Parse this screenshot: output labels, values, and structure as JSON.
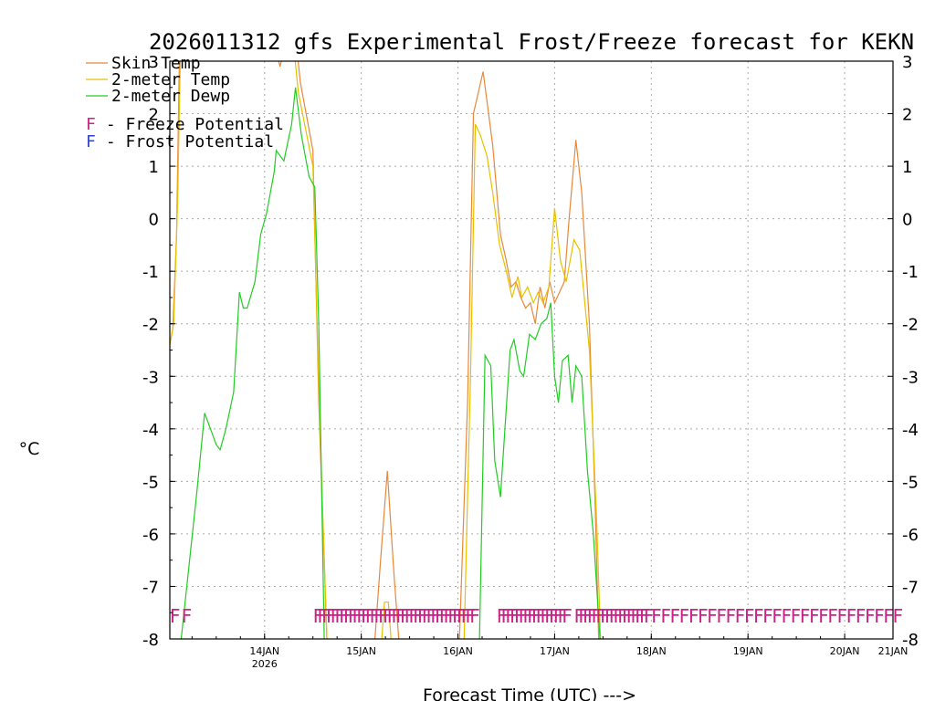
{
  "chart_data": {
    "type": "line",
    "title": "2026011312 gfs Experimental Frost/Freeze forecast for KEKN",
    "ylabel": "°C",
    "xlabel": "Forecast Time (UTC) --->",
    "ylim": [
      -8,
      3
    ],
    "xlim": [
      -0.48,
      7
    ],
    "y_ticks": [
      "-8",
      "-7",
      "-6",
      "-5",
      "-4",
      "-3",
      "-2",
      "-1",
      "0",
      "1",
      "2",
      "3"
    ],
    "x_ticks": [
      {
        "x": 0.5,
        "label": "14JAN",
        "sub": "2026"
      },
      {
        "x": 1.5,
        "label": "15JAN",
        "sub": ""
      },
      {
        "x": 2.5,
        "label": "16JAN",
        "sub": ""
      },
      {
        "x": 3.5,
        "label": "17JAN",
        "sub": ""
      },
      {
        "x": 4.5,
        "label": "18JAN",
        "sub": ""
      },
      {
        "x": 5.5,
        "label": "19JAN",
        "sub": ""
      },
      {
        "x": 6.5,
        "label": "20JAN",
        "sub": ""
      },
      {
        "x": 7.0,
        "label": "21JAN",
        "sub": ""
      }
    ],
    "grid": true,
    "series": [
      {
        "name": "Skin Temp",
        "color": "#e8883a",
        "points": [
          [
            -0.48,
            -2.4
          ],
          [
            -0.45,
            -2.1
          ],
          [
            -0.41,
            -0.3
          ],
          [
            -0.38,
            3.2
          ],
          [
            0.6,
            3.3
          ],
          [
            0.66,
            2.9
          ],
          [
            0.7,
            3.2
          ],
          [
            0.82,
            3.5
          ],
          [
            0.87,
            2.6
          ],
          [
            1.0,
            1.3
          ],
          [
            1.06,
            -3.5
          ],
          [
            1.15,
            -8.3
          ],
          [
            1.63,
            -8.3
          ],
          [
            1.7,
            -6.5
          ],
          [
            1.77,
            -4.8
          ],
          [
            1.84,
            -6.8
          ],
          [
            1.9,
            -8.3
          ],
          [
            2.51,
            -8.3
          ],
          [
            2.6,
            -3.5
          ],
          [
            2.66,
            2.0
          ],
          [
            2.76,
            2.8
          ],
          [
            2.86,
            1.4
          ],
          [
            2.94,
            -0.3
          ],
          [
            3.0,
            -0.8
          ],
          [
            3.05,
            -1.3
          ],
          [
            3.1,
            -1.2
          ],
          [
            3.15,
            -1.5
          ],
          [
            3.2,
            -1.7
          ],
          [
            3.25,
            -1.6
          ],
          [
            3.3,
            -2.0
          ],
          [
            3.35,
            -1.3
          ],
          [
            3.4,
            -1.7
          ],
          [
            3.45,
            -1.2
          ],
          [
            3.5,
            -1.6
          ],
          [
            3.55,
            -1.4
          ],
          [
            3.6,
            -1.2
          ],
          [
            3.65,
            0.0
          ],
          [
            3.72,
            1.5
          ],
          [
            3.78,
            0.5
          ],
          [
            3.86,
            -2.0
          ],
          [
            3.92,
            -5.5
          ],
          [
            3.96,
            -8.3
          ]
        ]
      },
      {
        "name": "2-meter Temp",
        "color": "#e8c000",
        "points": [
          [
            -0.48,
            -2.4
          ],
          [
            -0.44,
            -2.0
          ],
          [
            -0.4,
            0.3
          ],
          [
            -0.37,
            3.2
          ],
          [
            0.62,
            3.2
          ],
          [
            0.74,
            3.1
          ],
          [
            0.8,
            3.3
          ],
          [
            0.85,
            2.4
          ],
          [
            1.0,
            1.0
          ],
          [
            1.07,
            -3.8
          ],
          [
            1.15,
            -8.3
          ],
          [
            1.7,
            -8.3
          ],
          [
            1.74,
            -7.3
          ],
          [
            1.78,
            -7.3
          ],
          [
            1.82,
            -8.3
          ],
          [
            2.56,
            -8.3
          ],
          [
            2.63,
            -3.0
          ],
          [
            2.68,
            1.8
          ],
          [
            2.73,
            1.6
          ],
          [
            2.8,
            1.2
          ],
          [
            2.86,
            0.5
          ],
          [
            2.93,
            -0.5
          ],
          [
            3.0,
            -1.0
          ],
          [
            3.06,
            -1.5
          ],
          [
            3.12,
            -1.1
          ],
          [
            3.16,
            -1.5
          ],
          [
            3.22,
            -1.3
          ],
          [
            3.28,
            -1.6
          ],
          [
            3.33,
            -1.4
          ],
          [
            3.38,
            -1.6
          ],
          [
            3.44,
            -1.3
          ],
          [
            3.5,
            0.2
          ],
          [
            3.56,
            -0.8
          ],
          [
            3.62,
            -1.2
          ],
          [
            3.7,
            -0.4
          ],
          [
            3.76,
            -0.6
          ],
          [
            3.86,
            -2.5
          ],
          [
            3.94,
            -6.0
          ],
          [
            3.98,
            -8.3
          ]
        ]
      },
      {
        "name": "2-meter Dewp",
        "color": "#22cc22",
        "points": [
          [
            -0.38,
            -8.3
          ],
          [
            -0.2,
            -5.2
          ],
          [
            -0.12,
            -3.7
          ],
          [
            -0.06,
            -4.0
          ],
          [
            0.0,
            -4.3
          ],
          [
            0.04,
            -4.4
          ],
          [
            0.1,
            -4.0
          ],
          [
            0.18,
            -3.3
          ],
          [
            0.24,
            -1.4
          ],
          [
            0.28,
            -1.7
          ],
          [
            0.32,
            -1.7
          ],
          [
            0.4,
            -1.2
          ],
          [
            0.46,
            -0.3
          ],
          [
            0.52,
            0.1
          ],
          [
            0.6,
            0.9
          ],
          [
            0.62,
            1.3
          ],
          [
            0.7,
            1.1
          ],
          [
            0.78,
            1.8
          ],
          [
            0.82,
            2.5
          ],
          [
            0.88,
            1.6
          ],
          [
            0.96,
            0.8
          ],
          [
            1.02,
            0.6
          ],
          [
            1.06,
            -2.0
          ],
          [
            1.12,
            -8.3
          ],
          [
            2.72,
            -8.3
          ],
          [
            2.78,
            -2.6
          ],
          [
            2.84,
            -2.8
          ],
          [
            2.88,
            -4.6
          ],
          [
            2.94,
            -5.3
          ],
          [
            3.0,
            -3.6
          ],
          [
            3.04,
            -2.5
          ],
          [
            3.08,
            -2.3
          ],
          [
            3.14,
            -2.9
          ],
          [
            3.18,
            -3.0
          ],
          [
            3.24,
            -2.2
          ],
          [
            3.3,
            -2.3
          ],
          [
            3.36,
            -2.0
          ],
          [
            3.42,
            -1.9
          ],
          [
            3.46,
            -1.6
          ],
          [
            3.5,
            -3.0
          ],
          [
            3.54,
            -3.5
          ],
          [
            3.58,
            -2.7
          ],
          [
            3.64,
            -2.6
          ],
          [
            3.68,
            -3.5
          ],
          [
            3.72,
            -2.8
          ],
          [
            3.78,
            -3.0
          ],
          [
            3.84,
            -4.8
          ],
          [
            3.9,
            -6.0
          ],
          [
            3.98,
            -8.3
          ]
        ]
      }
    ],
    "flags": [
      {
        "type": "freeze",
        "start": -0.48,
        "end": -0.36,
        "step": 0.12
      },
      {
        "type": "freeze",
        "start": 1.0,
        "end": 2.66,
        "step": 0.045
      },
      {
        "type": "freeze",
        "start": 2.9,
        "end": 3.58,
        "step": 0.045
      },
      {
        "type": "freeze",
        "start": 3.7,
        "end": 4.46,
        "step": 0.045
      },
      {
        "type": "freeze",
        "start": 4.5,
        "end": 7.0,
        "step": 0.096
      }
    ],
    "flag_color": "#cc2288",
    "flag_letter": "F",
    "flag_y": -7.55
  },
  "legend": {
    "series": [
      {
        "label": "Skin Temp",
        "color": "#e8883a"
      },
      {
        "label": "2-meter Temp",
        "color": "#e8c000"
      },
      {
        "label": "2-meter Dewp",
        "color": "#22cc22"
      }
    ],
    "flags": [
      {
        "letter": "F",
        "label": " - Freeze Potential",
        "color": "#cc2288"
      },
      {
        "letter": "F",
        "label": " - Frost Potential",
        "color": "#3344cc"
      }
    ]
  }
}
